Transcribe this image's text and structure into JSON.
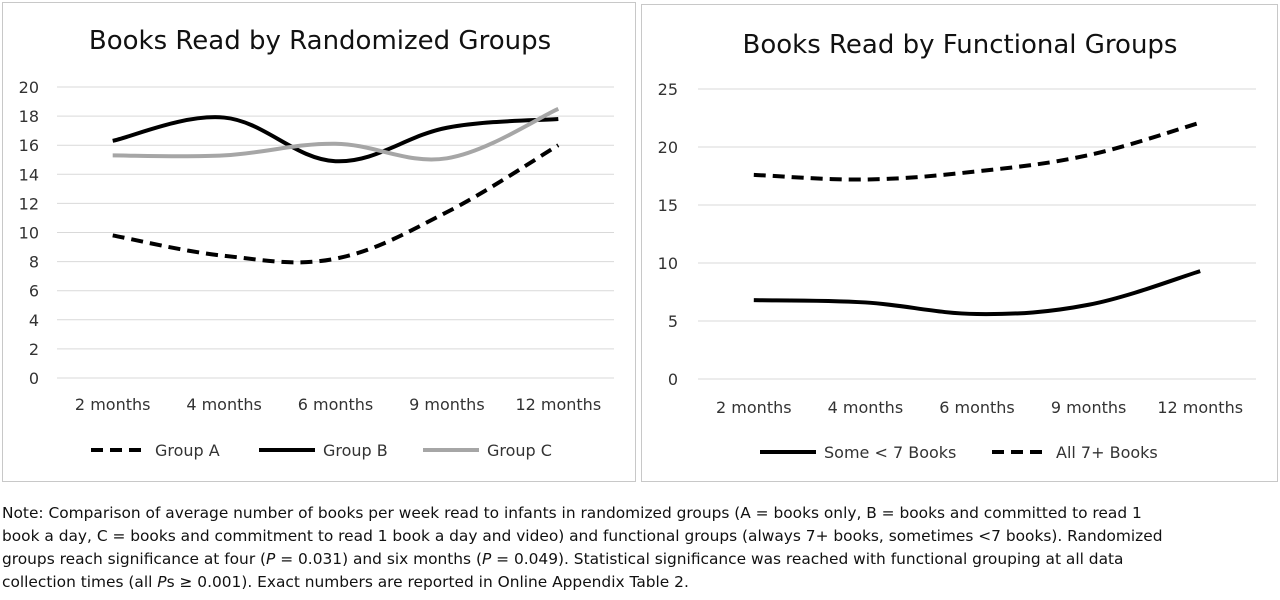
{
  "chart_data": [
    {
      "type": "line",
      "title": "Books Read by Randomized Groups",
      "categories": [
        "2 months",
        "4 months",
        "6 months",
        "9 months",
        "12 months"
      ],
      "ylim": [
        0,
        20
      ],
      "yticks": [
        0,
        2,
        4,
        6,
        8,
        10,
        12,
        14,
        16,
        18,
        20
      ],
      "grid": true,
      "legend_position": "bottom",
      "series": [
        {
          "name": "Group A",
          "values": [
            9.8,
            8.4,
            8.2,
            11.4,
            16.0
          ],
          "color": "#000000",
          "style": "dashed"
        },
        {
          "name": "Group B",
          "values": [
            16.3,
            17.9,
            14.9,
            17.2,
            17.8
          ],
          "color": "#000000",
          "style": "solid"
        },
        {
          "name": "Group C",
          "values": [
            15.3,
            15.3,
            16.1,
            15.1,
            18.5
          ],
          "color": "#a6a6a6",
          "style": "solid"
        }
      ]
    },
    {
      "type": "line",
      "title": "Books Read by Functional Groups",
      "categories": [
        "2 months",
        "4 months",
        "6 months",
        "9 months",
        "12 months"
      ],
      "ylim": [
        0,
        25
      ],
      "yticks": [
        0,
        5,
        10,
        15,
        20,
        25
      ],
      "grid": true,
      "legend_position": "bottom",
      "series": [
        {
          "name": "Some < 7 Books",
          "values": [
            6.8,
            6.6,
            5.6,
            6.4,
            9.3
          ],
          "color": "#000000",
          "style": "solid"
        },
        {
          "name": "All 7+ Books",
          "values": [
            17.6,
            17.2,
            17.9,
            19.3,
            22.1
          ],
          "color": "#000000",
          "style": "dashed"
        }
      ]
    }
  ],
  "note": {
    "line1": "Note: Comparison of average number of books per week read to infants in randomized groups (A = books only, B = books and committed to read 1",
    "line2": "book a day, C = books and commitment to read 1 book a day and video) and functional groups (always 7+ books, sometimes <7 books). Randomized",
    "line3_a": "groups reach significance at four (",
    "p_symbol": "P",
    "line3_b": " = 0.031) and six months (",
    "line3_c": " = 0.049). Statistical significance was reached with functional grouping at all data",
    "line4_a": "collection times (all ",
    "ps_symbol": "P",
    "line4_b": "s ≥ 0.001). Exact numbers are reported in Online Appendix Table 2."
  }
}
